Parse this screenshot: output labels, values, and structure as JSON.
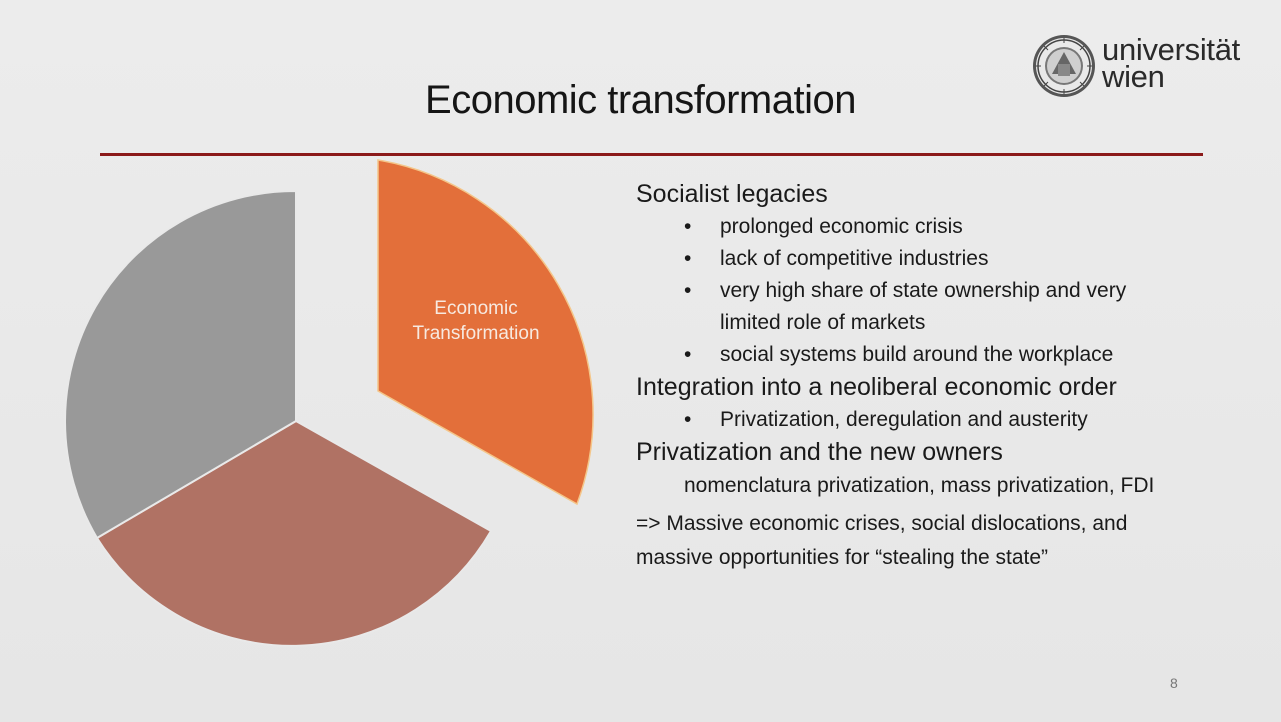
{
  "slide": {
    "title": "Economic transformation",
    "page_number": "8"
  },
  "logo": {
    "line1": "universität",
    "line2": "wien"
  },
  "pie": {
    "label": [
      "Economic",
      "Transformation"
    ],
    "colors": {
      "highlight": "#e36f3a",
      "brown": "#b07264",
      "gray": "#999999"
    }
  },
  "content": {
    "section1": {
      "heading": "Socialist legacies",
      "bullets": [
        "prolonged economic crisis",
        "lack of competitive industries",
        "very high share of state ownership and very",
        "limited role of markets",
        "social systems build around  the workplace"
      ]
    },
    "section2": {
      "heading": "Integration into a neoliberal economic order",
      "bullets": [
        "Privatization, deregulation and austerity"
      ]
    },
    "section3": {
      "heading": "Privatization and the new owners",
      "sub": "nomenclatura privatization, mass privatization, FDI"
    },
    "conclusion": {
      "line1": "=> Massive economic crises, social dislocations, and",
      "line2": "massive opportunities for “stealing the state”"
    }
  },
  "colors": {
    "rule": "#8b1a1a",
    "background": "#e9e9e9"
  }
}
